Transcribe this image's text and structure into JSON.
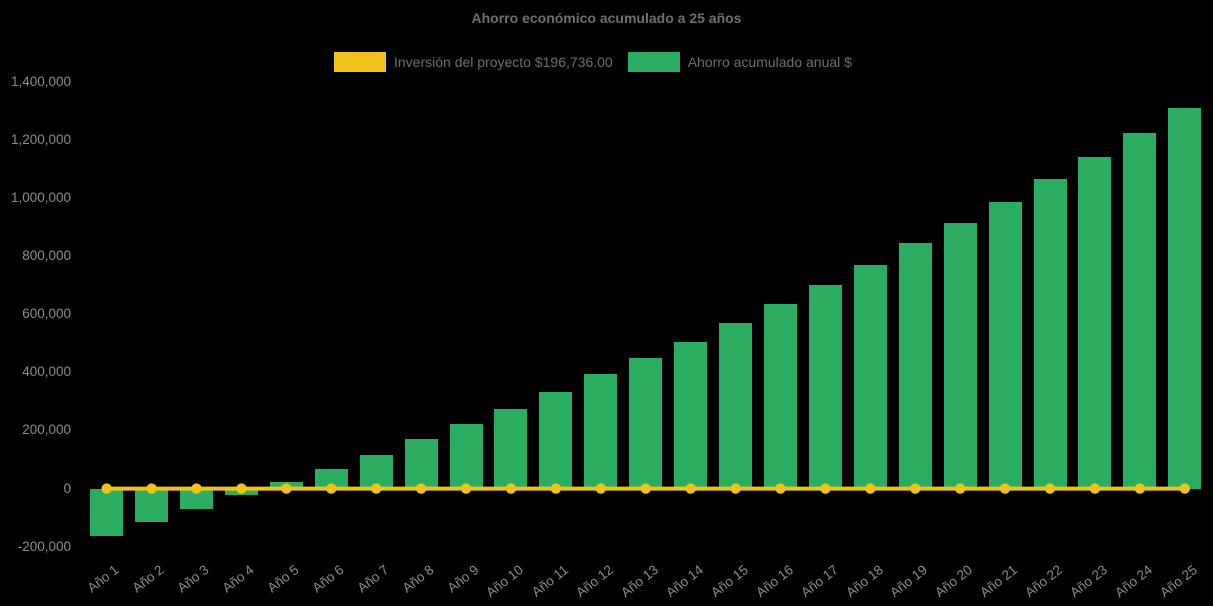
{
  "chart_data": {
    "type": "bar",
    "title": "Ahorro económico acumulado a 25 años",
    "background_color": "#000000",
    "title_color": "#6F6F6F",
    "axis_text_color": "#8C8C8C",
    "grid": false,
    "legend_position": "top",
    "categories": [
      "Año 1",
      "Año 2",
      "Año 3",
      "Año 4",
      "Año 5",
      "Año 6",
      "Año 7",
      "Año 8",
      "Año 9",
      "Año 10",
      "Año 11",
      "Año 12",
      "Año 13",
      "Año 14",
      "Año 15",
      "Año 16",
      "Año 17",
      "Año 18",
      "Año 19",
      "Año 20",
      "Año 21",
      "Año 22",
      "Año 23",
      "Año 24",
      "Año 25"
    ],
    "series": [
      {
        "name": "Inversión del proyecto $196,736.00",
        "type": "line",
        "color": "#EFC319",
        "marker": "circle",
        "investment_amount_shown_in_label": "196,736.00",
        "values": [
          0,
          0,
          0,
          0,
          0,
          0,
          0,
          0,
          0,
          0,
          0,
          0,
          0,
          0,
          0,
          0,
          0,
          0,
          0,
          0,
          0,
          0,
          0,
          0,
          0
        ]
      },
      {
        "name": "Ahorro acumulado anual $",
        "type": "bar",
        "color": "#2BAD61",
        "values": [
          -162000,
          -114000,
          -71000,
          -22000,
          24000,
          68000,
          117000,
          172000,
          223000,
          275000,
          333000,
          393000,
          448000,
          505000,
          571000,
          634000,
          699000,
          768000,
          844000,
          915000,
          985000,
          1065000,
          1142000,
          1224000,
          1308000
        ]
      }
    ],
    "y_axis": {
      "min": -200000,
      "max": 1400000,
      "tick_step": 200000,
      "tick_labels": [
        "-200,000",
        "0",
        "200,000",
        "400,000",
        "600,000",
        "800,000",
        "1,000,000",
        "1,200,000",
        "1,400,000"
      ]
    },
    "xlabel": "",
    "ylabel": ""
  }
}
